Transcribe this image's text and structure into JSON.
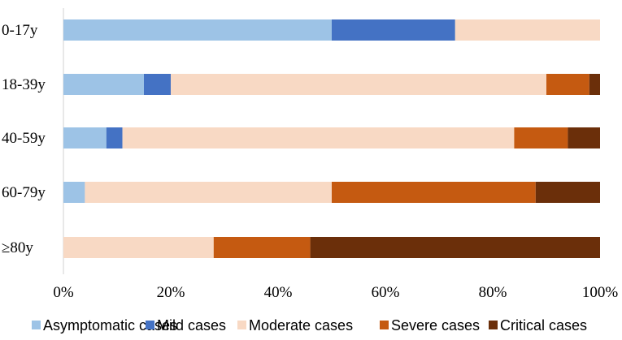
{
  "chart_data": {
    "type": "bar",
    "orientation": "horizontal",
    "stacked": true,
    "categories": [
      "0-17y",
      "18-39y",
      "40-59y",
      "60-79y",
      "≥80y"
    ],
    "series": [
      {
        "name": "Asymptomatic cases",
        "color": "#9DC3E6",
        "values": [
          50,
          15,
          8,
          4,
          0
        ]
      },
      {
        "name": "Mild cases",
        "color": "#4472C4",
        "values": [
          23,
          5,
          3,
          0,
          0
        ]
      },
      {
        "name": "Moderate cases",
        "color": "#F8D9C4",
        "values": [
          27,
          70,
          73,
          46,
          28
        ]
      },
      {
        "name": "Severe cases",
        "color": "#C55A11",
        "values": [
          0,
          8,
          10,
          38,
          18
        ]
      },
      {
        "name": "Critical cases",
        "color": "#6B2F0A",
        "values": [
          0,
          2,
          6,
          12,
          54
        ]
      }
    ],
    "xlim": [
      0,
      100
    ],
    "xticks": [
      "0%",
      "20%",
      "40%",
      "60%",
      "80%",
      "100%"
    ],
    "title": "",
    "xlabel": "",
    "ylabel": "",
    "grid": false,
    "legend_position": "bottom"
  }
}
